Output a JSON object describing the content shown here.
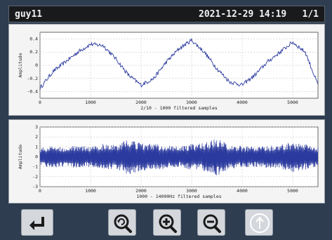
{
  "header": {
    "user": "guy11",
    "datetime": "2021-12-29 14:19",
    "page": "1/1"
  },
  "chart_data": [
    {
      "type": "line",
      "ylabel": "Amplitude",
      "xlabel": "2/10 - 1000 filtered samples",
      "xlim": [
        0,
        5500
      ],
      "ylim": [
        -0.5,
        0.5
      ],
      "xticks": [
        0,
        1000,
        2000,
        3000,
        4000,
        5000
      ],
      "yticks": [
        0.4,
        0.2,
        0.0,
        -0.2,
        -0.4
      ],
      "ytick_labels": [
        "0.4",
        "0.2",
        "0",
        "-0.2",
        "-0.4"
      ],
      "grid": true,
      "color": "#2b3a9e",
      "x": [
        0,
        250,
        500,
        750,
        1000,
        1250,
        1500,
        1750,
        2000,
        2250,
        2500,
        2750,
        3000,
        3250,
        3500,
        3750,
        4000,
        4250,
        4500,
        4750,
        5000,
        5250,
        5500
      ],
      "y": [
        -0.35,
        -0.1,
        0.05,
        0.2,
        0.32,
        0.3,
        0.1,
        -0.15,
        -0.3,
        -0.2,
        0.05,
        0.25,
        0.38,
        0.2,
        -0.05,
        -0.25,
        -0.3,
        -0.15,
        0.05,
        0.2,
        0.35,
        0.2,
        -0.3
      ]
    },
    {
      "type": "line",
      "ylabel": "Amplitude",
      "xlabel": "1000 - 14000Hz filtered samples",
      "xlim": [
        0,
        5500
      ],
      "ylim": [
        -3,
        3
      ],
      "xticks": [
        0,
        1000,
        2000,
        3000,
        4000,
        5000
      ],
      "yticks": [
        3,
        2,
        1,
        0,
        -1,
        -2,
        -3
      ],
      "ytick_labels": [
        "3",
        "2",
        "1",
        "0",
        "-1",
        "-2",
        "-3"
      ],
      "grid": true,
      "color": "#2b3a9e",
      "x": [
        0,
        250,
        500,
        750,
        1000,
        1250,
        1500,
        1750,
        2000,
        2250,
        2500,
        2750,
        3000,
        3250,
        3500,
        3750,
        4000,
        4250,
        4500,
        4750,
        5000,
        5250,
        5500
      ],
      "y_upper": [
        0.9,
        1.1,
        1.0,
        1.2,
        1.0,
        1.3,
        1.2,
        1.8,
        1.4,
        1.3,
        1.2,
        1.0,
        1.3,
        1.4,
        1.9,
        1.2,
        1.1,
        1.0,
        1.1,
        1.2,
        1.6,
        1.3,
        1.0
      ],
      "y_lower": [
        -0.9,
        -1.1,
        -1.0,
        -1.2,
        -1.0,
        -1.3,
        -1.2,
        -1.8,
        -1.4,
        -1.3,
        -1.2,
        -1.0,
        -1.3,
        -1.4,
        -1.9,
        -1.2,
        -1.1,
        -1.0,
        -1.1,
        -1.2,
        -1.6,
        -1.3,
        -1.0
      ]
    }
  ],
  "buttons": {
    "enter": "enter-icon",
    "zoom_reset": "zoom-reset-icon",
    "zoom_in": "zoom-in-icon",
    "zoom_out": "zoom-out-icon",
    "up": "arrow-up-icon"
  }
}
